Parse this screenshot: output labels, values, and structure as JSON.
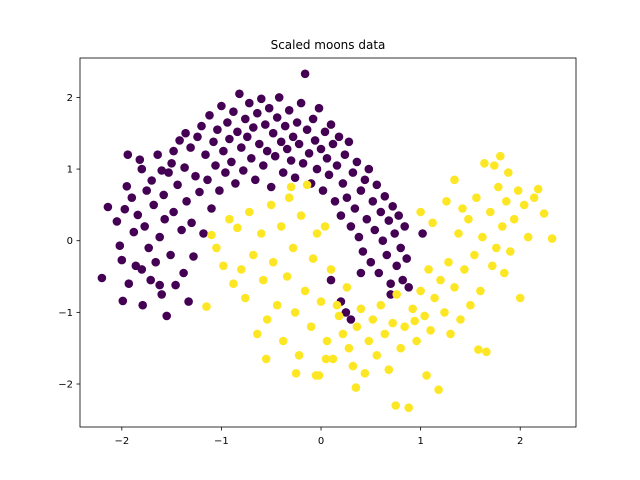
{
  "chart_data": {
    "type": "scatter",
    "title": "Scaled moons data",
    "xlabel": "",
    "ylabel": "",
    "xlim": [
      -2.42,
      2.56
    ],
    "ylim": [
      -2.6,
      2.55
    ],
    "xticks": [
      -2,
      -1,
      0,
      1,
      2
    ],
    "yticks": [
      -2,
      -1,
      0,
      1,
      2
    ],
    "xtick_labels": [
      "−2",
      "−1",
      "0",
      "1",
      "2"
    ],
    "ytick_labels": [
      "−2",
      "−1",
      "0",
      "1",
      "2"
    ],
    "grid": false,
    "legend": "none",
    "series": [
      {
        "color": "#440154",
        "points": [
          [
            -2.2,
            -0.52
          ],
          [
            -2.14,
            0.47
          ],
          [
            -2.05,
            0.27
          ],
          [
            -2.02,
            -0.07
          ],
          [
            -2.0,
            -0.27
          ],
          [
            -1.99,
            -0.84
          ],
          [
            -1.97,
            0.44
          ],
          [
            -1.95,
            0.76
          ],
          [
            -1.93,
            -0.6
          ],
          [
            -1.9,
            0.6
          ],
          [
            -1.88,
            0.12
          ],
          [
            -1.86,
            -0.35
          ],
          [
            -1.84,
            0.36
          ],
          [
            -1.82,
            1.13
          ],
          [
            -1.8,
            -0.4
          ],
          [
            -1.79,
            -0.9
          ],
          [
            -1.77,
            0.2
          ],
          [
            -1.75,
            0.7
          ],
          [
            -1.73,
            -0.1
          ],
          [
            -1.71,
            -0.55
          ],
          [
            -1.7,
            0.84
          ],
          [
            -1.68,
            0.5
          ],
          [
            -1.66,
            -0.3
          ],
          [
            -1.64,
            1.2
          ],
          [
            -1.62,
            0.05
          ],
          [
            -1.6,
            -0.75
          ],
          [
            -1.58,
            0.64
          ],
          [
            -1.57,
            0.3
          ],
          [
            -1.55,
            -1.05
          ],
          [
            -1.53,
            0.95
          ],
          [
            -1.51,
            -0.2
          ],
          [
            -1.5,
            1.08
          ],
          [
            -1.48,
            0.4
          ],
          [
            -1.46,
            -0.62
          ],
          [
            -1.44,
            0.78
          ],
          [
            -1.42,
            1.4
          ],
          [
            -1.4,
            0.15
          ],
          [
            -1.38,
            -0.45
          ],
          [
            -1.37,
            1.02
          ],
          [
            -1.35,
            0.55
          ],
          [
            -1.33,
            -0.85
          ],
          [
            -1.31,
            1.3
          ],
          [
            -1.3,
            0.25
          ],
          [
            -1.28,
            -0.22
          ],
          [
            -1.26,
            0.9
          ],
          [
            -1.24,
            1.45
          ],
          [
            -1.22,
            0.68
          ],
          [
            -1.2,
            1.6
          ],
          [
            -1.18,
            0.1
          ],
          [
            -1.16,
            1.2
          ],
          [
            -1.14,
            0.85
          ],
          [
            -1.12,
            1.75
          ],
          [
            -1.1,
            0.45
          ],
          [
            -1.08,
            1.38
          ],
          [
            -1.06,
            1.05
          ],
          [
            -1.04,
            1.55
          ],
          [
            -1.02,
            0.7
          ],
          [
            -1.0,
            1.88
          ],
          [
            -0.98,
            1.25
          ],
          [
            -0.96,
            0.95
          ],
          [
            -0.94,
            1.65
          ],
          [
            -0.92,
            1.42
          ],
          [
            -0.9,
            1.1
          ],
          [
            -0.88,
            1.8
          ],
          [
            -0.86,
            0.8
          ],
          [
            -0.84,
            1.52
          ],
          [
            -0.82,
            2.05
          ],
          [
            -0.8,
            1.3
          ],
          [
            -0.78,
            0.98
          ],
          [
            -0.76,
            1.7
          ],
          [
            -0.74,
            1.45
          ],
          [
            -0.72,
            1.92
          ],
          [
            -0.7,
            1.15
          ],
          [
            -0.68,
            1.58
          ],
          [
            -0.66,
            0.85
          ],
          [
            -0.64,
            1.78
          ],
          [
            -0.62,
            1.35
          ],
          [
            -0.6,
            1.98
          ],
          [
            -0.58,
            1.05
          ],
          [
            -0.56,
            1.62
          ],
          [
            -0.54,
            1.25
          ],
          [
            -0.52,
            1.85
          ],
          [
            -0.5,
            0.75
          ],
          [
            -0.48,
            1.5
          ],
          [
            -0.46,
            1.18
          ],
          [
            -0.44,
            1.72
          ],
          [
            -0.42,
            2.0
          ],
          [
            -0.4,
            1.38
          ],
          [
            -0.38,
            0.95
          ],
          [
            -0.36,
            1.6
          ],
          [
            -0.34,
            1.28
          ],
          [
            -0.32,
            1.82
          ],
          [
            -0.3,
            1.12
          ],
          [
            -0.28,
            1.45
          ],
          [
            -0.26,
            0.88
          ],
          [
            -0.24,
            1.65
          ],
          [
            -0.22,
            1.35
          ],
          [
            -0.2,
            1.92
          ],
          [
            -0.18,
            1.08
          ],
          [
            -0.16,
            2.33
          ],
          [
            -0.14,
            1.55
          ],
          [
            -0.12,
            1.22
          ],
          [
            -0.1,
            0.8
          ],
          [
            -0.08,
            1.7
          ],
          [
            -0.06,
            1.4
          ],
          [
            -0.04,
            1.0
          ],
          [
            -0.02,
            1.85
          ],
          [
            0.0,
            1.28
          ],
          [
            0.02,
            0.7
          ],
          [
            0.04,
            1.52
          ],
          [
            0.06,
            1.15
          ],
          [
            0.08,
            0.92
          ],
          [
            0.1,
            1.62
          ],
          [
            0.12,
            1.35
          ],
          [
            0.14,
            0.55
          ],
          [
            0.16,
            1.05
          ],
          [
            0.18,
            1.45
          ],
          [
            0.2,
            0.35
          ],
          [
            0.22,
            0.8
          ],
          [
            0.24,
            1.2
          ],
          [
            0.26,
            0.6
          ],
          [
            0.28,
            1.38
          ],
          [
            0.3,
            0.2
          ],
          [
            0.32,
            0.95
          ],
          [
            0.34,
            0.45
          ],
          [
            0.36,
            1.1
          ],
          [
            0.38,
            0.05
          ],
          [
            0.4,
            0.7
          ],
          [
            0.42,
            -0.15
          ],
          [
            0.44,
            0.85
          ],
          [
            0.46,
            0.3
          ],
          [
            0.48,
            1.0
          ],
          [
            0.5,
            -0.3
          ],
          [
            0.52,
            0.55
          ],
          [
            0.54,
            0.15
          ],
          [
            0.56,
            0.78
          ],
          [
            0.58,
            -0.45
          ],
          [
            0.6,
            0.4
          ],
          [
            0.62,
            0.0
          ],
          [
            0.64,
            0.62
          ],
          [
            0.66,
            -0.2
          ],
          [
            0.68,
            0.28
          ],
          [
            0.7,
            -0.6
          ],
          [
            0.72,
            0.48
          ],
          [
            0.74,
            0.1
          ],
          [
            0.76,
            -0.35
          ],
          [
            0.78,
            0.35
          ],
          [
            0.8,
            -0.1
          ],
          [
            0.82,
            -0.55
          ],
          [
            0.84,
            0.2
          ],
          [
            0.86,
            -0.25
          ],
          [
            0.88,
            -0.65
          ],
          [
            0.4,
            -0.45
          ],
          [
            0.1,
            -0.55
          ],
          [
            0.25,
            -1.0
          ],
          [
            0.3,
            -1.1
          ],
          [
            0.2,
            -0.85
          ],
          [
            0.7,
            -0.75
          ],
          [
            1.02,
            0.1
          ],
          [
            -1.94,
            1.2
          ],
          [
            -1.8,
            1.0
          ],
          [
            -1.6,
            0.98
          ],
          [
            -1.48,
            1.25
          ],
          [
            -1.36,
            1.5
          ],
          [
            -1.62,
            -0.62
          ]
        ]
      },
      {
        "color": "#fde725",
        "points": [
          [
            -1.15,
            -0.92
          ],
          [
            -1.1,
            0.08
          ],
          [
            -1.05,
            -0.1
          ],
          [
            -0.98,
            -0.35
          ],
          [
            -0.92,
            0.3
          ],
          [
            -0.88,
            -0.6
          ],
          [
            -0.84,
            0.18
          ],
          [
            -0.8,
            -0.4
          ],
          [
            -0.76,
            -0.8
          ],
          [
            -0.72,
            0.4
          ],
          [
            -0.68,
            -0.2
          ],
          [
            -0.64,
            -1.3
          ],
          [
            -0.6,
            0.1
          ],
          [
            -0.58,
            -0.55
          ],
          [
            -0.54,
            -1.1
          ],
          [
            -0.5,
            0.5
          ],
          [
            -0.48,
            -0.3
          ],
          [
            -0.44,
            -0.9
          ],
          [
            -0.4,
            0.2
          ],
          [
            -0.38,
            -1.4
          ],
          [
            -0.34,
            -0.5
          ],
          [
            -0.32,
            0.6
          ],
          [
            -0.28,
            -0.1
          ],
          [
            -0.26,
            -1.0
          ],
          [
            -0.22,
            -1.6
          ],
          [
            -0.2,
            0.35
          ],
          [
            -0.16,
            -0.7
          ],
          [
            -0.14,
            0.78
          ],
          [
            -0.1,
            -1.2
          ],
          [
            -0.08,
            -0.25
          ],
          [
            -0.04,
            0.1
          ],
          [
            -0.02,
            -1.88
          ],
          [
            0.0,
            -0.85
          ],
          [
            0.04,
            0.2
          ],
          [
            0.06,
            -1.4
          ],
          [
            0.1,
            -0.4
          ],
          [
            0.12,
            -1.65
          ],
          [
            0.16,
            -0.9
          ],
          [
            0.18,
            -1.05
          ],
          [
            0.22,
            -1.3
          ],
          [
            0.26,
            -0.65
          ],
          [
            0.28,
            -1.5
          ],
          [
            0.32,
            -1.75
          ],
          [
            0.36,
            -1.2
          ],
          [
            0.4,
            -0.95
          ],
          [
            0.44,
            -1.85
          ],
          [
            0.48,
            -1.4
          ],
          [
            0.52,
            -1.1
          ],
          [
            0.56,
            -1.6
          ],
          [
            0.6,
            -0.9
          ],
          [
            0.64,
            -1.3
          ],
          [
            0.68,
            -1.8
          ],
          [
            0.72,
            -1.15
          ],
          [
            0.76,
            -0.75
          ],
          [
            0.8,
            -1.5
          ],
          [
            0.84,
            -1.2
          ],
          [
            0.88,
            -2.33
          ],
          [
            0.92,
            -0.95
          ],
          [
            0.96,
            -1.4
          ],
          [
            1.0,
            -0.7
          ],
          [
            1.04,
            -1.05
          ],
          [
            1.08,
            -0.4
          ],
          [
            1.1,
            -1.25
          ],
          [
            1.14,
            -0.8
          ],
          [
            1.18,
            -2.08
          ],
          [
            1.2,
            -0.55
          ],
          [
            1.24,
            -1.0
          ],
          [
            1.28,
            -0.3
          ],
          [
            1.3,
            -1.3
          ],
          [
            1.34,
            -0.65
          ],
          [
            1.38,
            0.1
          ],
          [
            1.4,
            -1.1
          ],
          [
            1.44,
            -0.4
          ],
          [
            1.48,
            0.3
          ],
          [
            1.5,
            -0.9
          ],
          [
            1.54,
            -0.2
          ],
          [
            1.56,
            0.6
          ],
          [
            1.6,
            -0.7
          ],
          [
            1.62,
            0.05
          ],
          [
            1.64,
            1.08
          ],
          [
            1.66,
            -1.55
          ],
          [
            1.7,
            0.4
          ],
          [
            1.72,
            -0.35
          ],
          [
            1.74,
            1.05
          ],
          [
            1.76,
            -0.1
          ],
          [
            1.78,
            0.75
          ],
          [
            1.8,
            1.18
          ],
          [
            1.82,
            0.2
          ],
          [
            1.84,
            -0.45
          ],
          [
            1.86,
            0.55
          ],
          [
            1.88,
            0.95
          ],
          [
            1.9,
            -0.15
          ],
          [
            1.94,
            0.3
          ],
          [
            1.98,
            0.7
          ],
          [
            2.0,
            -0.8
          ],
          [
            2.04,
            0.5
          ],
          [
            2.08,
            0.05
          ],
          [
            2.14,
            0.6
          ],
          [
            2.18,
            0.72
          ],
          [
            2.24,
            0.38
          ],
          [
            2.32,
            0.03
          ],
          [
            1.26,
            0.55
          ],
          [
            1.34,
            0.85
          ],
          [
            1.42,
            0.45
          ],
          [
            1.12,
            0.25
          ],
          [
            1.0,
            0.4
          ],
          [
            -0.25,
            -1.85
          ],
          [
            -0.05,
            -1.88
          ],
          [
            0.35,
            -2.05
          ],
          [
            -0.55,
            -1.65
          ],
          [
            0.05,
            -1.65
          ],
          [
            0.75,
            -2.3
          ],
          [
            1.58,
            -1.52
          ],
          [
            0.94,
            -1.12
          ],
          [
            1.06,
            -1.88
          ],
          [
            -0.3,
            0.75
          ]
        ]
      }
    ]
  }
}
